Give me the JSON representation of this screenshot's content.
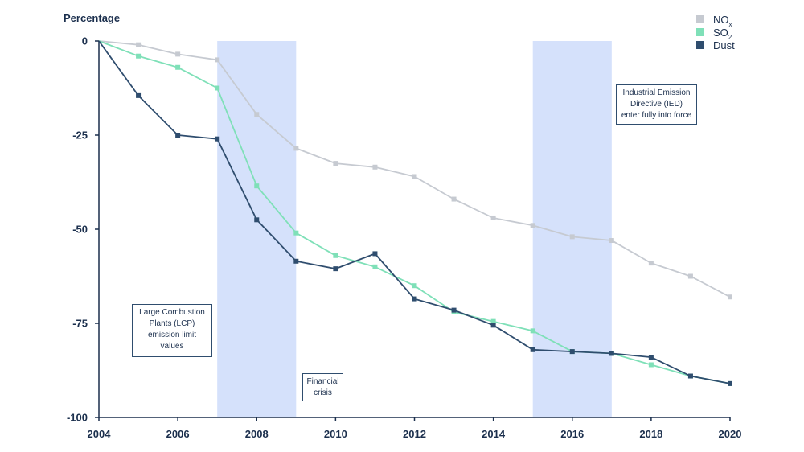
{
  "chart_data": {
    "type": "line",
    "ylabel": "Percentage",
    "x": [
      2004,
      2005,
      2006,
      2007,
      2008,
      2009,
      2010,
      2011,
      2012,
      2013,
      2014,
      2015,
      2016,
      2017,
      2018,
      2019,
      2020
    ],
    "ylim": [
      -100,
      0
    ],
    "xlim": [
      2004,
      2020
    ],
    "xticks": [
      "2004",
      "2006",
      "2008",
      "2010",
      "2012",
      "2014",
      "2016",
      "2018",
      "2020"
    ],
    "yticks": [
      "0",
      "-25",
      "-50",
      "-75",
      "-100"
    ],
    "grid": false,
    "legend_position": "top-right",
    "series": [
      {
        "name": "NOx",
        "label_main": "NO",
        "label_sub": "x",
        "color": "#c6cad1",
        "values": [
          0,
          -1,
          -3.5,
          -5,
          -19.5,
          -28.5,
          -32.5,
          -33.5,
          -36,
          -42,
          -47,
          -49,
          -52,
          -53,
          -59,
          -62.5,
          -68
        ]
      },
      {
        "name": "SO2",
        "label_main": "SO",
        "label_sub": "2",
        "color": "#7fe0b8",
        "values": [
          0,
          -4,
          -7,
          -12.5,
          -38.5,
          -51,
          -57,
          -60,
          -65,
          -72,
          -74.5,
          -77,
          -82.5,
          -83,
          -86,
          -89,
          -91
        ]
      },
      {
        "name": "Dust",
        "label_main": "Dust",
        "label_sub": "",
        "color": "#2f4d6e",
        "values": [
          0,
          -14.5,
          -25,
          -26,
          -47.5,
          -58.5,
          -60.5,
          -56.5,
          -68.5,
          -71.5,
          -75.5,
          -82,
          -82.5,
          -83,
          -84,
          -89,
          -91
        ]
      }
    ],
    "shaded_periods": [
      [
        2007,
        2009
      ],
      [
        2015,
        2017
      ]
    ],
    "shade_color": "#d5e1fb",
    "annotations": [
      {
        "id": "lcp",
        "lines": [
          "Large Combustion",
          "Plants (LCP)",
          "emission limit",
          "values"
        ]
      },
      {
        "id": "crisis",
        "lines": [
          "Financial",
          "crisis"
        ]
      },
      {
        "id": "ied",
        "lines": [
          "Industrial Emission",
          "Directive (IED)",
          "enter fully into force"
        ]
      }
    ]
  },
  "colors": {
    "axis": "#1b2f4d",
    "text": "#1b2f4d"
  }
}
